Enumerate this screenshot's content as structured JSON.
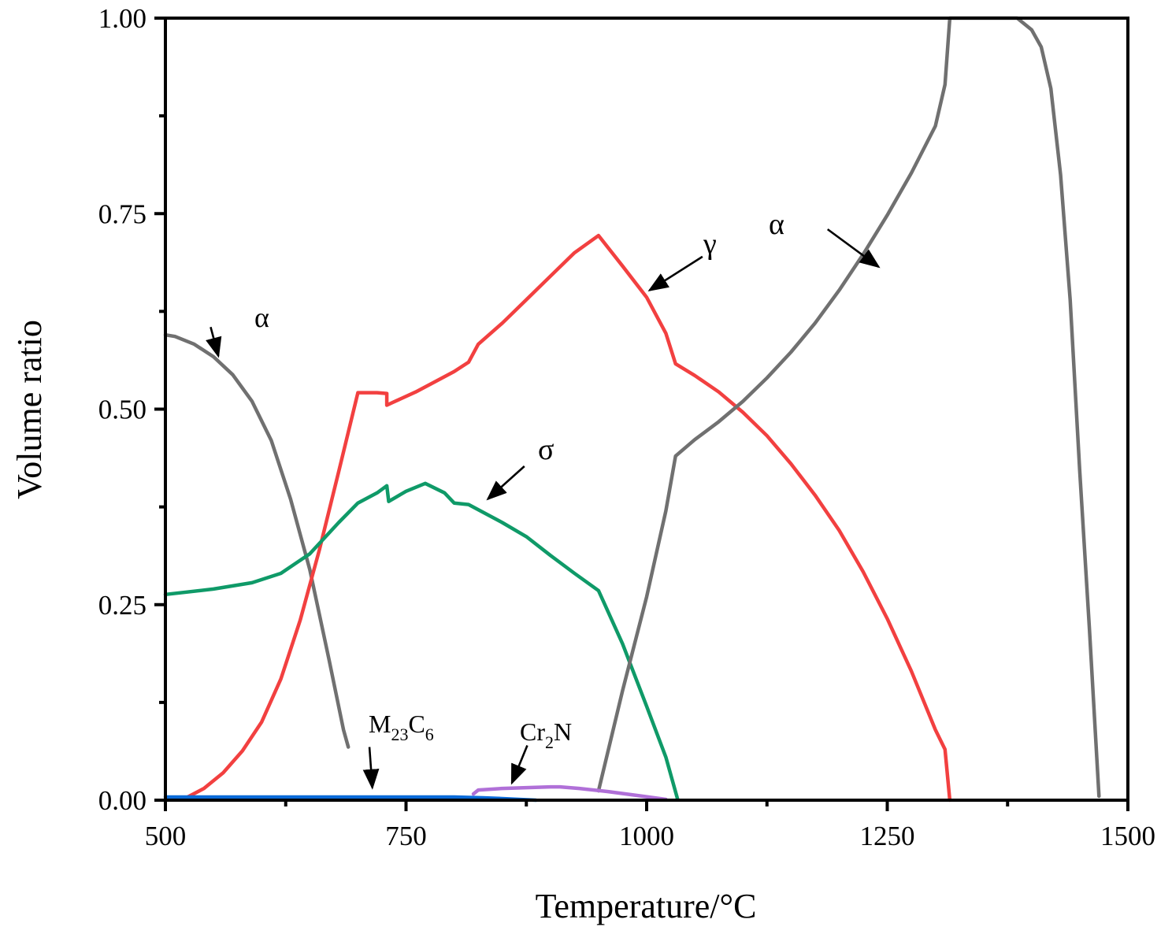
{
  "chart_data": {
    "type": "line",
    "title": "",
    "xlabel": "Temperature/°C",
    "ylabel": "Volume ratio",
    "xlim": [
      500,
      1500
    ],
    "ylim": [
      0,
      1
    ],
    "xticks": [
      500,
      750,
      1000,
      1250,
      1500
    ],
    "xtick_labels": [
      "500",
      "750",
      "1000",
      "1250",
      "1500"
    ],
    "yticks": [
      0,
      0.25,
      0.5,
      0.75,
      1.0
    ],
    "ytick_labels": [
      "0.00",
      "0.25",
      "0.50",
      "0.75",
      "1.00"
    ],
    "grid": false,
    "legend": "none",
    "series": [
      {
        "name": "alpha-low",
        "color": "#707070",
        "x": [
          500,
          510,
          530,
          550,
          570,
          590,
          610,
          630,
          650,
          670,
          685,
          690
        ],
        "y": [
          0.595,
          0.593,
          0.583,
          0.567,
          0.544,
          0.51,
          0.46,
          0.385,
          0.295,
          0.18,
          0.09,
          0.068
        ]
      },
      {
        "name": "gamma",
        "color": "#f24040",
        "x": [
          520,
          540,
          560,
          580,
          600,
          620,
          640,
          660,
          680,
          700,
          720,
          730,
          730,
          735,
          760,
          780,
          800,
          815,
          825,
          850,
          875,
          900,
          925,
          950,
          975,
          1000,
          1020,
          1030,
          1050,
          1075,
          1100,
          1125,
          1150,
          1175,
          1200,
          1225,
          1250,
          1275,
          1300,
          1310,
          1315
        ],
        "y": [
          0.002,
          0.015,
          0.035,
          0.063,
          0.1,
          0.155,
          0.23,
          0.32,
          0.42,
          0.521,
          0.521,
          0.52,
          0.505,
          0.508,
          0.522,
          0.535,
          0.548,
          0.56,
          0.583,
          0.61,
          0.64,
          0.67,
          0.7,
          0.722,
          0.683,
          0.643,
          0.597,
          0.558,
          0.543,
          0.522,
          0.496,
          0.466,
          0.43,
          0.39,
          0.345,
          0.292,
          0.232,
          0.165,
          0.09,
          0.065,
          0.0
        ]
      },
      {
        "name": "sigma",
        "color": "#0f9a68",
        "x": [
          500,
          550,
          590,
          620,
          650,
          680,
          700,
          720,
          730,
          732,
          750,
          770,
          790,
          800,
          815,
          850,
          875,
          900,
          925,
          950,
          975,
          1000,
          1020,
          1032
        ],
        "y": [
          0.263,
          0.27,
          0.278,
          0.29,
          0.315,
          0.355,
          0.38,
          0.393,
          0.402,
          0.382,
          0.395,
          0.405,
          0.393,
          0.38,
          0.378,
          0.355,
          0.337,
          0.313,
          0.29,
          0.268,
          0.2,
          0.12,
          0.055,
          0.002
        ]
      },
      {
        "name": "alpha-high",
        "color": "#707070",
        "x": [
          950,
          975,
          1000,
          1020,
          1030,
          1050,
          1075,
          1100,
          1125,
          1150,
          1175,
          1200,
          1225,
          1250,
          1275,
          1300,
          1310,
          1315,
          1335,
          1360,
          1385,
          1400,
          1410,
          1420,
          1430,
          1440,
          1450,
          1460,
          1470
        ],
        "y": [
          0.012,
          0.14,
          0.26,
          0.37,
          0.44,
          0.461,
          0.484,
          0.51,
          0.54,
          0.573,
          0.61,
          0.652,
          0.698,
          0.748,
          0.802,
          0.862,
          0.915,
          1.0,
          1.0,
          1.0,
          1.0,
          0.985,
          0.963,
          0.91,
          0.8,
          0.64,
          0.42,
          0.22,
          0.005
        ]
      },
      {
        "name": "M23C6",
        "color": "#0a6ad8",
        "x": [
          500,
          550,
          600,
          650,
          700,
          750,
          800,
          830,
          850,
          885
        ],
        "y": [
          0.004,
          0.004,
          0.004,
          0.004,
          0.004,
          0.004,
          0.004,
          0.003,
          0.002,
          0.0
        ]
      },
      {
        "name": "Cr2N",
        "color": "#b070d8",
        "x": [
          820,
          825,
          850,
          875,
          900,
          910,
          930,
          960,
          990,
          1020
        ],
        "y": [
          0.008,
          0.013,
          0.015,
          0.016,
          0.017,
          0.017,
          0.015,
          0.011,
          0.006,
          0.001
        ]
      }
    ],
    "annotations": [
      {
        "text": "α",
        "arrow_from": [
          547,
          0.605
        ],
        "arrow_to": [
          555,
          0.568
        ]
      },
      {
        "text": "γ",
        "arrow_from": [
          1058,
          0.695
        ],
        "arrow_to": [
          1003,
          0.652
        ]
      },
      {
        "text": "σ",
        "arrow_from": [
          873,
          0.427
        ],
        "arrow_to": [
          835,
          0.385
        ]
      },
      {
        "text": "α",
        "arrow_from": [
          1188,
          0.73
        ],
        "arrow_to": [
          1241,
          0.682
        ]
      },
      {
        "text": "M",
        "sub1": "23",
        "text2": "C",
        "sub2": "6",
        "arrow_from": [
          712,
          0.068
        ],
        "arrow_to": [
          715,
          0.016
        ]
      },
      {
        "text": "Cr",
        "sub1": "2",
        "text2": "N",
        "sub2": "",
        "arrow_from": [
          876,
          0.07
        ],
        "arrow_to": [
          860,
          0.022
        ]
      }
    ]
  }
}
